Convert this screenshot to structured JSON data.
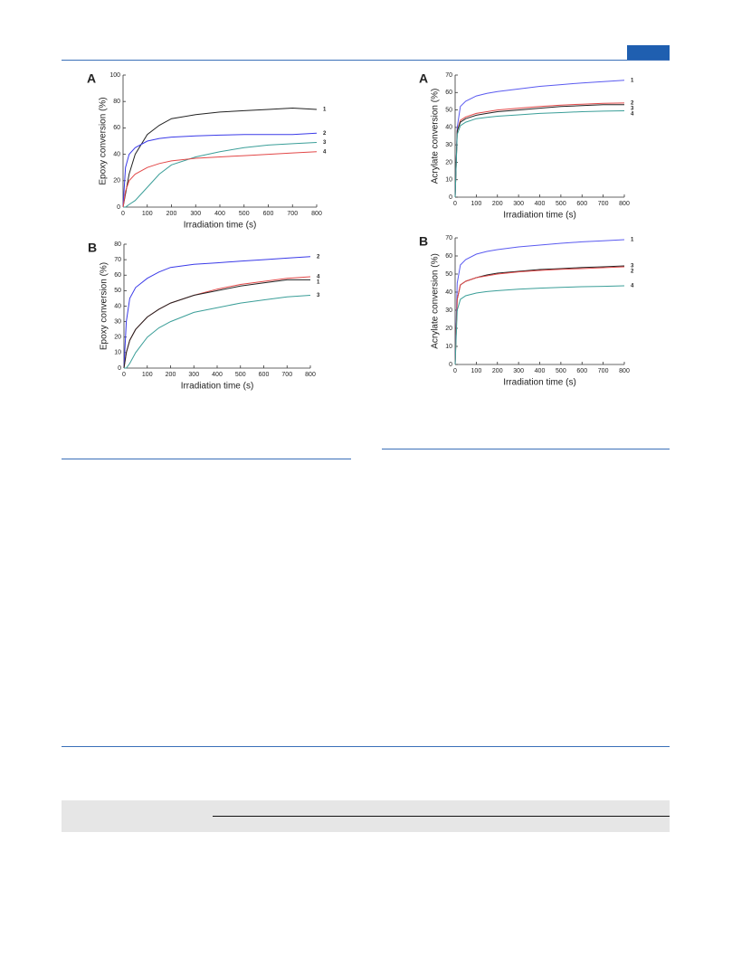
{
  "chart_data": [
    {
      "type": "line",
      "panel": "A",
      "x_label": "Irradiation time (s)",
      "y_label": "Epoxy conversion (%)",
      "x": [
        0,
        10,
        25,
        50,
        100,
        150,
        200,
        300,
        400,
        500,
        600,
        700,
        800
      ],
      "xlim": [
        0,
        800
      ],
      "xticks": [
        0,
        100,
        200,
        300,
        400,
        500,
        600,
        700,
        800
      ],
      "ylim": [
        0,
        100
      ],
      "yticks": [
        0,
        20,
        40,
        60,
        80,
        100
      ],
      "series": [
        {
          "name": "1",
          "color": "#222222",
          "values": [
            0,
            10,
            25,
            40,
            55,
            62,
            67,
            70,
            72,
            73,
            74,
            75,
            74
          ]
        },
        {
          "name": "2",
          "color": "#3a3ae8",
          "values": [
            0,
            30,
            40,
            45,
            50,
            52,
            53,
            54,
            54.5,
            55,
            55,
            55,
            56
          ]
        },
        {
          "name": "3",
          "color": "#3a9e98",
          "values": [
            0,
            0,
            2,
            5,
            15,
            25,
            32,
            38,
            42,
            45,
            47,
            48,
            49
          ]
        },
        {
          "name": "4",
          "color": "#e24848",
          "values": [
            0,
            12,
            20,
            25,
            30,
            33,
            35,
            37,
            38,
            39,
            40,
            41,
            42
          ]
        }
      ]
    },
    {
      "type": "line",
      "panel": "B",
      "x_label": "Irradiation time (s)",
      "y_label": "Epoxy conversion (%)",
      "x": [
        0,
        10,
        25,
        50,
        100,
        150,
        200,
        300,
        400,
        500,
        600,
        700,
        800
      ],
      "xlim": [
        0,
        800
      ],
      "xticks": [
        0,
        100,
        200,
        300,
        400,
        500,
        600,
        700,
        800
      ],
      "ylim": [
        0,
        80
      ],
      "yticks": [
        0,
        10,
        20,
        30,
        40,
        50,
        60,
        70,
        80
      ],
      "series": [
        {
          "name": "2",
          "color": "#3a3ae8",
          "values": [
            0,
            30,
            45,
            52,
            58,
            62,
            65,
            67,
            68,
            69,
            70,
            71,
            72
          ]
        },
        {
          "name": "4",
          "color": "#e24848",
          "values": [
            0,
            10,
            18,
            25,
            33,
            38,
            42,
            47,
            51,
            54,
            56,
            58,
            59
          ]
        },
        {
          "name": "1",
          "color": "#222222",
          "values": [
            0,
            10,
            18,
            25,
            33,
            38,
            42,
            47,
            50,
            53,
            55,
            57,
            57
          ]
        },
        {
          "name": "3",
          "color": "#3a9e98",
          "values": [
            0,
            0,
            3,
            10,
            20,
            26,
            30,
            36,
            39,
            42,
            44,
            46,
            47
          ]
        }
      ]
    },
    {
      "type": "line",
      "panel": "A",
      "x_label": "Irradiation time (s)",
      "y_label": "Acrylate conversion (%)",
      "x": [
        0,
        10,
        25,
        50,
        100,
        150,
        200,
        300,
        400,
        500,
        600,
        700,
        800
      ],
      "xlim": [
        0,
        800
      ],
      "xticks": [
        0,
        100,
        200,
        300,
        400,
        500,
        600,
        700,
        800
      ],
      "ylim": [
        0,
        70
      ],
      "yticks": [
        0,
        10,
        20,
        30,
        40,
        50,
        60,
        70
      ],
      "series": [
        {
          "name": "1",
          "color": "#5a5af0",
          "values": [
            0,
            40,
            52,
            55,
            58,
            59.5,
            60.5,
            62,
            63.5,
            64.5,
            65.5,
            66.2,
            67
          ]
        },
        {
          "name": "2",
          "color": "#e24848",
          "values": [
            0,
            38,
            44,
            46,
            48,
            49,
            50,
            51,
            52,
            52.8,
            53.3,
            53.8,
            54
          ]
        },
        {
          "name": "3",
          "color": "#222222",
          "values": [
            0,
            38,
            43,
            45,
            47,
            48,
            49,
            50,
            51,
            52,
            52.5,
            53,
            53
          ]
        },
        {
          "name": "4",
          "color": "#3a9e98",
          "values": [
            0,
            36,
            41,
            43,
            45,
            45.8,
            46.4,
            47.2,
            48,
            48.5,
            49,
            49.3,
            49.5
          ]
        }
      ]
    },
    {
      "type": "line",
      "panel": "B",
      "x_label": "Irradiation time (s)",
      "y_label": "Acrylate conversion (%)",
      "x": [
        0,
        10,
        25,
        50,
        100,
        150,
        200,
        300,
        400,
        500,
        600,
        700,
        800
      ],
      "xlim": [
        0,
        800
      ],
      "xticks": [
        0,
        100,
        200,
        300,
        400,
        500,
        600,
        700,
        800
      ],
      "ylim": [
        0,
        70
      ],
      "yticks": [
        0,
        10,
        20,
        30,
        40,
        50,
        60,
        70
      ],
      "series": [
        {
          "name": "1",
          "color": "#5a5af0",
          "values": [
            0,
            45,
            55,
            58,
            61,
            62.5,
            63.5,
            65,
            66,
            67,
            67.8,
            68.4,
            69
          ]
        },
        {
          "name": "3",
          "color": "#222222",
          "values": [
            0,
            36,
            44,
            46,
            48,
            49.5,
            50.5,
            51.5,
            52.5,
            53,
            53.6,
            54,
            54.5
          ]
        },
        {
          "name": "2",
          "color": "#e24848",
          "values": [
            0,
            36,
            44,
            46,
            48,
            49,
            50,
            51.2,
            52,
            52.6,
            53,
            53.5,
            54
          ]
        },
        {
          "name": "4",
          "color": "#3a9e98",
          "values": [
            0,
            30,
            36,
            38,
            39.5,
            40.3,
            40.8,
            41.6,
            42.2,
            42.6,
            43,
            43.2,
            43.5
          ]
        }
      ]
    }
  ]
}
